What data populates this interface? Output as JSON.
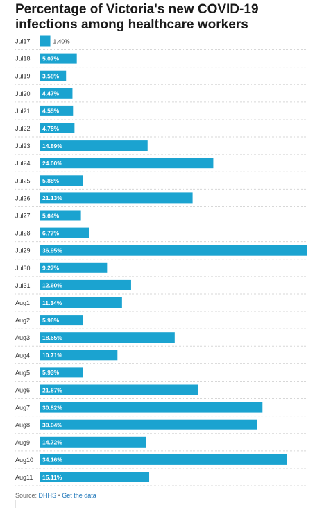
{
  "colors": {
    "bar": "#1ba3d0",
    "gridline": "#d7d7d7",
    "label_inside": "#ffffff",
    "label_outside": "#333333",
    "link": "#1a74b8"
  },
  "source": {
    "prefix": "Source: ",
    "name": "DHHS",
    "separator": " • ",
    "link_text": "Get the data"
  },
  "chart_data": {
    "type": "bar",
    "orientation": "horizontal",
    "title": "Percentage of Victoria's new COVID-19 infections among healthcare workers",
    "categories": [
      "Jul17",
      "Jul18",
      "Jul19",
      "Jul20",
      "Jul21",
      "Jul22",
      "Jul23",
      "Jul24",
      "Jul25",
      "Jul26",
      "Jul27",
      "Jul28",
      "Jul29",
      "Jul30",
      "Jul31",
      "Aug1",
      "Aug2",
      "Aug3",
      "Aug4",
      "Aug5",
      "Aug6",
      "Aug7",
      "Aug8",
      "Aug9",
      "Aug10",
      "Aug11"
    ],
    "values": [
      1.4,
      5.07,
      3.58,
      4.47,
      4.55,
      4.75,
      14.89,
      24.0,
      5.88,
      21.13,
      5.64,
      6.77,
      36.95,
      9.27,
      12.6,
      11.34,
      5.96,
      18.65,
      10.71,
      5.93,
      21.87,
      30.82,
      30.04,
      14.72,
      34.16,
      15.11
    ],
    "value_labels": [
      "1.40%",
      "5.07%",
      "3.58%",
      "4.47%",
      "4.55%",
      "4.75%",
      "14.89%",
      "24.00%",
      "5.88%",
      "21.13%",
      "5.64%",
      "6.77%",
      "36.95%",
      "9.27%",
      "12.60%",
      "11.34%",
      "5.96%",
      "18.65%",
      "10.71%",
      "5.93%",
      "21.87%",
      "30.82%",
      "30.04%",
      "14.72%",
      "34.16%",
      "15.11%"
    ],
    "xlim": [
      0,
      36.95
    ],
    "xlabel": "",
    "ylabel": "",
    "grid": true,
    "legend": "none"
  }
}
